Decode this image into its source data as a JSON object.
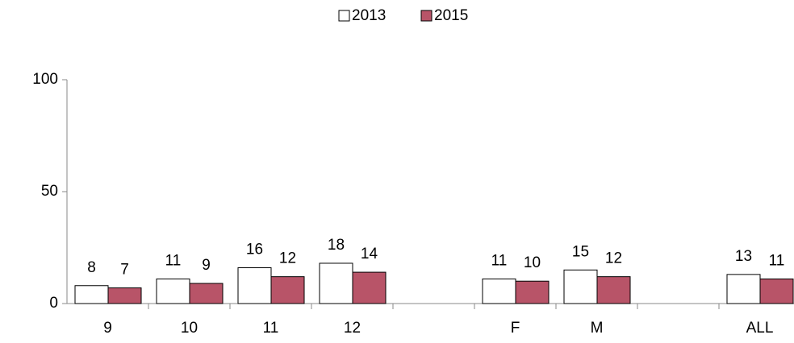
{
  "chart_data": {
    "type": "bar",
    "categories": [
      "9",
      "10",
      "11",
      "12",
      null,
      "F",
      "M",
      null,
      "ALL"
    ],
    "series": [
      {
        "name": "2013",
        "color": "#ffffff",
        "values": [
          8,
          11,
          16,
          18,
          null,
          11,
          15,
          null,
          13
        ]
      },
      {
        "name": "2015",
        "color": "#b85468",
        "values": [
          7,
          9,
          12,
          14,
          null,
          10,
          12,
          null,
          11
        ]
      }
    ],
    "ylim": [
      0,
      100
    ],
    "yticks": [
      0,
      50,
      100
    ],
    "grid": false,
    "legend": "top"
  }
}
